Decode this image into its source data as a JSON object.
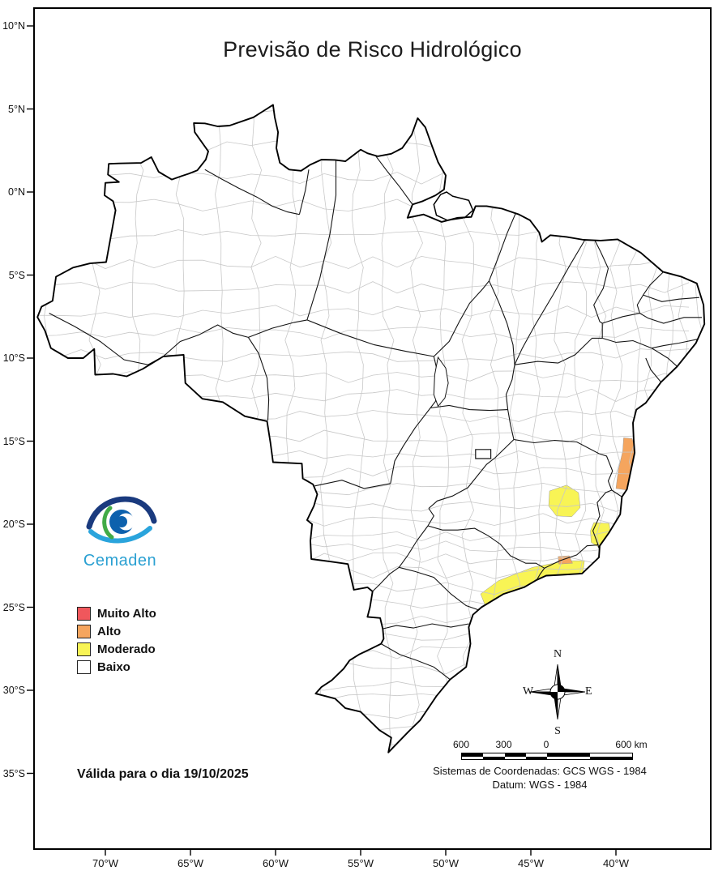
{
  "title": "Previsão de Risco Hidrológico",
  "logo": {
    "wordmark": "Cemaden"
  },
  "legend": {
    "items": [
      {
        "label": "Muito Alto",
        "color": "#f0575c"
      },
      {
        "label": "Alto",
        "color": "#f5a55e"
      },
      {
        "label": "Moderado",
        "color": "#f8f455"
      },
      {
        "label": "Baixo",
        "color": "#ffffff"
      }
    ]
  },
  "validity_note": "Válida para o dia 19/10/2025",
  "compass": {
    "north": "N",
    "east": "E",
    "south": "S",
    "west": "W"
  },
  "scale_bar": {
    "labels": [
      "600",
      "300",
      "0",
      "600 km"
    ]
  },
  "crs": {
    "line1": "Sistemas de Coordenadas: GCS WGS - 1984",
    "line2": "Datum: WGS - 1984"
  },
  "axes": {
    "latitude": [
      "10°N",
      "5°N",
      "0°N",
      "5°S",
      "10°S",
      "15°S",
      "20°S",
      "25°S",
      "30°S",
      "35°S"
    ],
    "longitude": [
      "70°W",
      "65°W",
      "60°W",
      "55°W",
      "50°W",
      "45°W",
      "40°W"
    ]
  }
}
